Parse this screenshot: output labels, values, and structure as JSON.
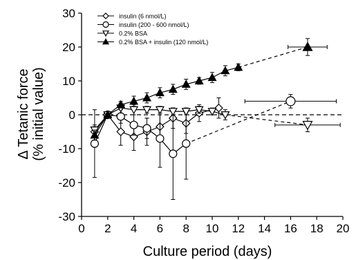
{
  "chart_data": {
    "type": "scatter",
    "title": "",
    "xlabel": "Culture period (days)",
    "ylabel_lines": [
      "Δ Tetanic force",
      "(% initial value)"
    ],
    "xlim": [
      0,
      20
    ],
    "ylim": [
      -30,
      30
    ],
    "xticks": [
      0,
      2,
      4,
      6,
      8,
      10,
      12,
      14,
      16,
      18,
      20
    ],
    "yticks": [
      -30,
      -20,
      -10,
      0,
      10,
      20,
      30
    ],
    "grid": false,
    "legend_position": "top-left",
    "reference_line_y": 0,
    "series": [
      {
        "name": "insulin (6 nmol/L)",
        "marker": "diamond-open",
        "line": "solid",
        "points": [
          {
            "x": 1,
            "y": -5,
            "err": 1.5
          },
          {
            "x": 2,
            "y": 0
          },
          {
            "x": 3,
            "y": -5,
            "err": 4
          },
          {
            "x": 4,
            "y": -6.5,
            "err": 4
          },
          {
            "x": 5,
            "y": -5,
            "err": 4
          },
          {
            "x": 6,
            "y": -3.5,
            "err": 4
          },
          {
            "x": 7,
            "y": -1,
            "err": 3
          },
          {
            "x": 8,
            "y": -2.5,
            "err": 3
          },
          {
            "x": 9,
            "y": 0.5,
            "err": 2.5
          },
          {
            "x": 10.5,
            "y": 2,
            "err": 3
          }
        ]
      },
      {
        "name": "insulin (200 - 600 nmol/L)",
        "marker": "circle-open",
        "line": "solid",
        "points": [
          {
            "x": 1,
            "y": -8.5,
            "err": 10
          },
          {
            "x": 2,
            "y": 0
          },
          {
            "x": 3,
            "y": -0.5,
            "err": 2
          },
          {
            "x": 4,
            "y": -3,
            "err": 3
          },
          {
            "x": 5,
            "y": -4,
            "err": 3
          },
          {
            "x": 6,
            "y": -7,
            "err": 8.5
          },
          {
            "x": 7,
            "y": -11.5,
            "err": 13.5
          },
          {
            "x": 8,
            "y": -8.5,
            "err": 10.5
          }
        ],
        "extra_point": {
          "x": 16,
          "y": 4,
          "err": 2,
          "xerr": 3.5
        }
      },
      {
        "name": "0.2% BSA",
        "marker": "triangle-down-open",
        "line": "solid",
        "points": [
          {
            "x": 1,
            "y": -4.5,
            "err": 1.5
          },
          {
            "x": 2,
            "y": 0
          },
          {
            "x": 3,
            "y": 2,
            "err": 1.5
          },
          {
            "x": 4,
            "y": 1.5,
            "err": 1.5
          },
          {
            "x": 5,
            "y": 1.5,
            "err": 1
          },
          {
            "x": 6,
            "y": 1.5,
            "err": 1
          },
          {
            "x": 7,
            "y": 1,
            "err": 1
          },
          {
            "x": 8,
            "y": 1,
            "err": 1
          },
          {
            "x": 9,
            "y": 1.5,
            "err": 1
          },
          {
            "x": 10,
            "y": 1,
            "err": 1
          },
          {
            "x": 11,
            "y": 0,
            "err": 1.5
          }
        ],
        "extra_point": {
          "x": 17.3,
          "y": -3,
          "err": 2,
          "xerr": 2.5
        }
      },
      {
        "name": "0.2% BSA + insulin (120 nmol/L)",
        "marker": "triangle-up-filled",
        "line": "solid",
        "points": [
          {
            "x": 1,
            "y": -6,
            "err": 1.5
          },
          {
            "x": 2,
            "y": 0
          },
          {
            "x": 3,
            "y": 3,
            "err": 1
          },
          {
            "x": 4,
            "y": 4,
            "err": 1.5
          },
          {
            "x": 5,
            "y": 5,
            "err": 1.5
          },
          {
            "x": 6,
            "y": 6.5,
            "err": 1.5
          },
          {
            "x": 7,
            "y": 7.5,
            "err": 1.5
          },
          {
            "x": 8,
            "y": 9,
            "err": 1.5
          },
          {
            "x": 9,
            "y": 10,
            "err": 1
          },
          {
            "x": 10,
            "y": 11,
            "err": 1.5
          },
          {
            "x": 11,
            "y": 13,
            "err": 1.5
          },
          {
            "x": 12,
            "y": 14,
            "err": 1
          }
        ],
        "extra_point": {
          "x": 17.3,
          "y": 20,
          "err": 2.5,
          "xerr": 1.5
        }
      }
    ]
  }
}
